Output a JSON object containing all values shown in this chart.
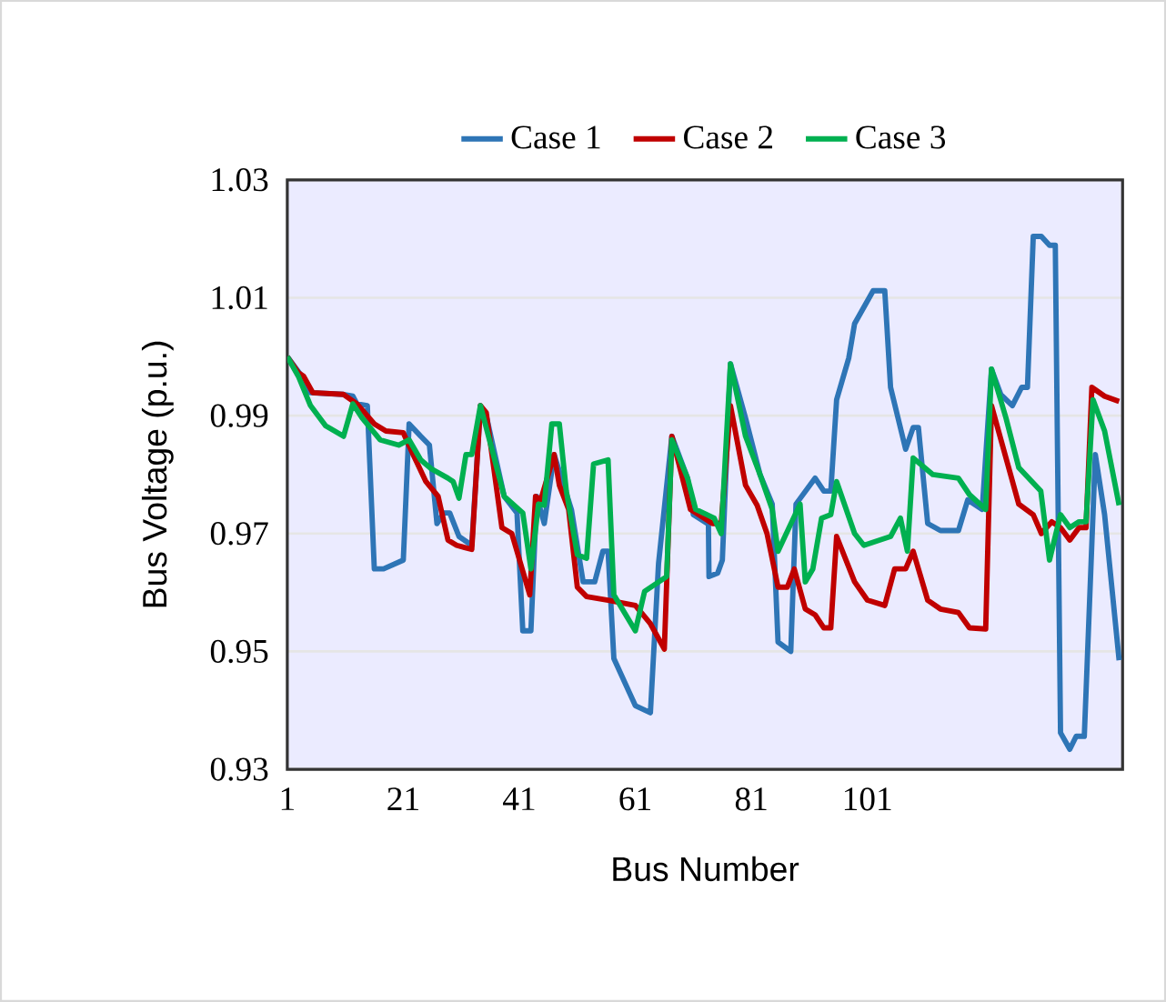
{
  "chart_data": {
    "type": "line",
    "xlabel": "Bus Number",
    "ylabel": "Bus Voltage (p.u.)",
    "xlim": [
      1,
      145
    ],
    "xticks": [
      1,
      21,
      41,
      61,
      81,
      101
    ],
    "ylim": [
      0.93,
      1.03
    ],
    "yticks": [
      0.93,
      0.95,
      0.97,
      0.99,
      1.01,
      1.03
    ],
    "grid": "y",
    "legend": "top",
    "marker": "none",
    "line_style": "solid",
    "series": [
      {
        "name": "Case 1",
        "color": "#2e75b6",
        "x": [
          1,
          3.5,
          5,
          10.7,
          12.3,
          13,
          14.8,
          16,
          17.6,
          21,
          22,
          24,
          25.5,
          26.8,
          28,
          29,
          30.6,
          32.8,
          34.3,
          35.3,
          38.4,
          40.6,
          41.6,
          43,
          44,
          45.3,
          47,
          50,
          52,
          54,
          55.4,
          56.3,
          57.3,
          61,
          63.6,
          65,
          67.3,
          70,
          71,
          73.6,
          73.7,
          75.2,
          76,
          77.4,
          80,
          82.5,
          84.6,
          85.6,
          87.8,
          88.7,
          92,
          93.5,
          94.7,
          95.7,
          97.8,
          98.8,
          102,
          104,
          105,
          107.6,
          108.9,
          109.8,
          111.4,
          113.6,
          116.7,
          118.3,
          120.8,
          122.4,
          124,
          126,
          127.6,
          128.6,
          129.6,
          131,
          132.4,
          133.4,
          134.3,
          135.9,
          137,
          138.4,
          140.3,
          141.9,
          144.4
        ],
        "values": [
          1.0,
          0.9967,
          0.9939,
          0.9936,
          0.9933,
          0.992,
          0.9917,
          0.964,
          0.964,
          0.9655,
          0.9886,
          0.9865,
          0.985,
          0.9717,
          0.9735,
          0.9735,
          0.9695,
          0.968,
          0.9917,
          0.99,
          0.9763,
          0.9735,
          0.9535,
          0.9535,
          0.9763,
          0.9717,
          0.9834,
          0.974,
          0.9618,
          0.9618,
          0.967,
          0.967,
          0.9488,
          0.9408,
          0.9396,
          0.9649,
          0.9865,
          0.9794,
          0.9732,
          0.9716,
          0.9627,
          0.9633,
          0.9655,
          0.9988,
          0.9896,
          0.98,
          0.975,
          0.9516,
          0.95,
          0.975,
          0.9794,
          0.9772,
          0.9772,
          0.9927,
          0.9998,
          1.0056,
          1.0112,
          1.0112,
          0.9948,
          0.9843,
          0.988,
          0.988,
          0.9717,
          0.9705,
          0.9705,
          0.9757,
          0.9741,
          0.9979,
          0.9936,
          0.9917,
          0.9948,
          0.9948,
          1.0204,
          1.0204,
          1.0189,
          1.0189,
          0.9362,
          0.9334,
          0.9356,
          0.9356,
          0.9834,
          0.9732,
          0.9485
        ]
      },
      {
        "name": "Case 2",
        "color": "#c00000",
        "x": [
          1,
          2.9,
          3.8,
          5.4,
          10.7,
          13,
          16,
          18,
          21,
          22.7,
          24.9,
          27,
          28.7,
          30.2,
          32.8,
          34.3,
          35.3,
          38,
          39.7,
          42.8,
          43.8,
          44.7,
          47,
          47.9,
          49.5,
          51,
          52.6,
          56.3,
          61,
          63.6,
          66,
          67.3,
          70.5,
          74.3,
          75.8,
          77.4,
          80,
          82,
          83.7,
          85.6,
          87.2,
          88.4,
          90.3,
          92,
          93.5,
          94.7,
          95.7,
          98.8,
          101,
          104,
          105.7,
          107.6,
          108.9,
          111.4,
          113.6,
          116.7,
          118.6,
          121.4,
          122.4,
          127.1,
          129.6,
          131,
          132.8,
          134.3,
          135.9,
          137.5,
          138.7,
          139.7,
          141.9,
          144.4
        ],
        "values": [
          1.0,
          0.9973,
          0.9967,
          0.9939,
          0.9936,
          0.992,
          0.9886,
          0.9874,
          0.9871,
          0.9834,
          0.9788,
          0.9763,
          0.9689,
          0.968,
          0.9673,
          0.9917,
          0.9905,
          0.971,
          0.97,
          0.9596,
          0.9763,
          0.9757,
          0.9834,
          0.9782,
          0.9741,
          0.9609,
          0.9593,
          0.9587,
          0.9578,
          0.9547,
          0.9504,
          0.9865,
          0.9741,
          0.9717,
          0.9717,
          0.9917,
          0.9782,
          0.9748,
          0.97,
          0.9609,
          0.9609,
          0.964,
          0.9572,
          0.9562,
          0.954,
          0.954,
          0.9695,
          0.9618,
          0.9587,
          0.9578,
          0.964,
          0.964,
          0.967,
          0.9587,
          0.9572,
          0.9566,
          0.954,
          0.9538,
          0.9917,
          0.975,
          0.9732,
          0.97,
          0.972,
          0.971,
          0.9689,
          0.971,
          0.971,
          0.9948,
          0.9933,
          0.9924
        ]
      },
      {
        "name": "Case 3",
        "color": "#00b050",
        "x": [
          1,
          2.9,
          5,
          7.6,
          10.7,
          12.3,
          13.9,
          17,
          20.2,
          22,
          24,
          25.8,
          28.7,
          29.6,
          30.6,
          31.8,
          32.8,
          34.3,
          38.4,
          41.6,
          43,
          44.3,
          45.3,
          46.6,
          47.9,
          49.1,
          51,
          52.6,
          53.8,
          56.3,
          57.3,
          61,
          62.6,
          66.4,
          67.3,
          70,
          71.4,
          74.6,
          75.8,
          77.4,
          80,
          82.5,
          84.6,
          85.6,
          89.4,
          90.3,
          91.6,
          93.1,
          94.7,
          95.7,
          98.8,
          100.4,
          105,
          106.7,
          107.9,
          108.9,
          112.3,
          116.7,
          118.6,
          121.4,
          122.4,
          124.9,
          127.1,
          130.9,
          132.4,
          134.3,
          135.9,
          137.5,
          138.7,
          139.9,
          141.9,
          144.4
        ],
        "values": [
          1.0,
          0.9967,
          0.9917,
          0.9883,
          0.9865,
          0.992,
          0.9896,
          0.9859,
          0.985,
          0.9859,
          0.9825,
          0.981,
          0.9794,
          0.9788,
          0.976,
          0.9834,
          0.9834,
          0.9917,
          0.9763,
          0.9735,
          0.964,
          0.975,
          0.9748,
          0.9886,
          0.9886,
          0.9772,
          0.9664,
          0.9658,
          0.9818,
          0.9825,
          0.9596,
          0.9535,
          0.9602,
          0.9627,
          0.9859,
          0.9794,
          0.9741,
          0.9726,
          0.97,
          0.9988,
          0.9865,
          0.98,
          0.9741,
          0.967,
          0.975,
          0.9618,
          0.964,
          0.9726,
          0.9732,
          0.9788,
          0.97,
          0.968,
          0.9695,
          0.9726,
          0.967,
          0.9828,
          0.98,
          0.9794,
          0.9766,
          0.9741,
          0.9979,
          0.9896,
          0.9812,
          0.9772,
          0.9655,
          0.9732,
          0.971,
          0.972,
          0.972,
          0.9927,
          0.9874,
          0.9748
        ]
      }
    ]
  }
}
